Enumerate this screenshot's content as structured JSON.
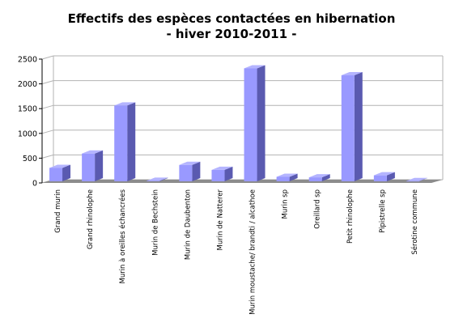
{
  "chart_data": {
    "type": "bar",
    "title_lines": [
      "Effectifs des espèces contactées en hibernation",
      "- hiver 2010-2011 -"
    ],
    "xlabel": "",
    "ylabel": "",
    "ylim": [
      0,
      2500
    ],
    "yticks": [
      0,
      500,
      1000,
      1500,
      2000,
      2500
    ],
    "grid": true,
    "legend": "none",
    "style": "3d-bars",
    "categories": [
      "Grand murin",
      "Grand rhinolophe",
      "Murin à oreilles échancrées",
      "Murin de Bechstein",
      "Murin de Daubenton",
      "Murin de Natterer",
      "Murin moustache/ brandti / alcathoe",
      "Murin sp",
      "Oreillard sp",
      "Petit rhinolophe",
      "Pipistrelle sp",
      "Sérotine commune"
    ],
    "series": [
      {
        "values": [
          270,
          560,
          1530,
          10,
          330,
          230,
          2280,
          90,
          80,
          2140,
          120,
          5
        ]
      }
    ]
  },
  "colors": {
    "bar_front": "#9999ff",
    "bar_side": "#5a5ab0",
    "bar_top": "#b4b4ff",
    "floor": "#8c8c8c",
    "grid": "#b3b3b3",
    "axis": "#000000"
  }
}
